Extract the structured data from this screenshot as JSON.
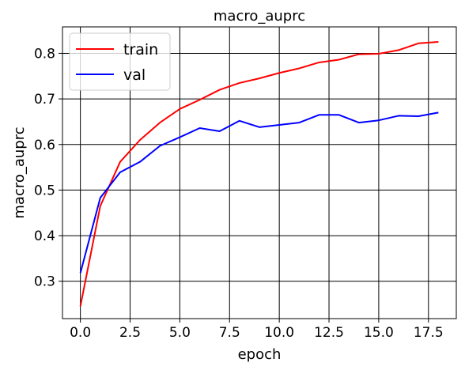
{
  "chart_data": {
    "type": "line",
    "title": "macro_auprc",
    "xlabel": "epoch",
    "ylabel": "macro_auprc",
    "xlim": [
      -0.9,
      18.9
    ],
    "ylim": [
      0.218,
      0.858
    ],
    "xticks": [
      0.0,
      2.5,
      5.0,
      7.5,
      10.0,
      12.5,
      15.0,
      17.5
    ],
    "xtick_labels": [
      "0.0",
      "2.5",
      "5.0",
      "7.5",
      "10.0",
      "12.5",
      "15.0",
      "17.5"
    ],
    "yticks": [
      0.3,
      0.4,
      0.5,
      0.6,
      0.7,
      0.8
    ],
    "ytick_labels": [
      "0.3",
      "0.4",
      "0.5",
      "0.6",
      "0.7",
      "0.8"
    ],
    "grid": true,
    "legend_position": "top-left",
    "x": [
      0,
      1,
      2,
      3,
      4,
      5,
      6,
      7,
      8,
      9,
      10,
      11,
      12,
      13,
      14,
      15,
      16,
      17,
      18
    ],
    "series": [
      {
        "name": "train",
        "color": "#ff0000",
        "values": [
          0.245,
          0.465,
          0.562,
          0.61,
          0.648,
          0.678,
          0.698,
          0.72,
          0.735,
          0.745,
          0.757,
          0.767,
          0.78,
          0.786,
          0.798,
          0.799,
          0.807,
          0.822,
          0.825
        ]
      },
      {
        "name": "val",
        "color": "#0000ff",
        "values": [
          0.318,
          0.483,
          0.539,
          0.562,
          0.597,
          0.616,
          0.636,
          0.629,
          0.652,
          0.638,
          0.643,
          0.648,
          0.665,
          0.665,
          0.648,
          0.653,
          0.663,
          0.662,
          0.67
        ]
      }
    ]
  }
}
